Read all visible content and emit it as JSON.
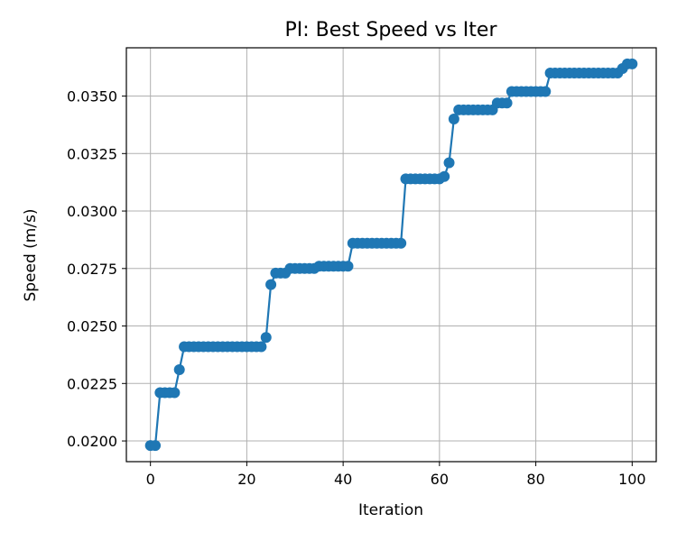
{
  "chart_data": {
    "type": "line",
    "title": "PI: Best Speed vs Iter",
    "xlabel": "Iteration",
    "ylabel": "Speed (m/s)",
    "xlim": [
      -5,
      105
    ],
    "ylim": [
      0.0191,
      0.0371
    ],
    "xticks": [
      0,
      20,
      40,
      60,
      80,
      100
    ],
    "yticks": [
      0.02,
      0.0225,
      0.025,
      0.0275,
      0.03,
      0.0325,
      0.035
    ],
    "xtick_labels": [
      "0",
      "20",
      "40",
      "60",
      "80",
      "100"
    ],
    "ytick_labels": [
      "0.0200",
      "0.0225",
      "0.0250",
      "0.0275",
      "0.0300",
      "0.0325",
      "0.0350"
    ],
    "grid": true,
    "marker": "circle",
    "line_color": "#1f77b4",
    "series": [
      {
        "x": [
          0,
          1,
          2,
          3,
          4,
          5,
          6,
          7,
          8,
          9,
          10,
          11,
          12,
          13,
          14,
          15,
          16,
          17,
          18,
          19,
          20,
          21,
          22,
          23,
          24,
          25,
          26,
          27,
          28,
          29,
          30,
          31,
          32,
          33,
          34,
          35,
          36,
          37,
          38,
          39,
          40,
          41,
          42,
          43,
          44,
          45,
          46,
          47,
          48,
          49,
          50,
          51,
          52,
          53,
          54,
          55,
          56,
          57,
          58,
          59,
          60,
          61,
          62,
          63,
          64,
          65,
          66,
          67,
          68,
          69,
          70,
          71,
          72,
          73,
          74,
          75,
          76,
          77,
          78,
          79,
          80,
          81,
          82,
          83,
          84,
          85,
          86,
          87,
          88,
          89,
          90,
          91,
          92,
          93,
          94,
          95,
          96,
          97,
          98,
          99,
          100
        ],
        "values": [
          0.0198,
          0.0198,
          0.0221,
          0.0221,
          0.0221,
          0.0221,
          0.0231,
          0.0241,
          0.0241,
          0.0241,
          0.0241,
          0.0241,
          0.0241,
          0.0241,
          0.0241,
          0.0241,
          0.0241,
          0.0241,
          0.0241,
          0.0241,
          0.0241,
          0.0241,
          0.0241,
          0.0241,
          0.0245,
          0.0268,
          0.0273,
          0.0273,
          0.0273,
          0.0275,
          0.0275,
          0.0275,
          0.0275,
          0.0275,
          0.0275,
          0.0276,
          0.0276,
          0.0276,
          0.0276,
          0.0276,
          0.0276,
          0.0276,
          0.0286,
          0.0286,
          0.0286,
          0.0286,
          0.0286,
          0.0286,
          0.0286,
          0.0286,
          0.0286,
          0.0286,
          0.0286,
          0.0314,
          0.0314,
          0.0314,
          0.0314,
          0.0314,
          0.0314,
          0.0314,
          0.0314,
          0.0315,
          0.0321,
          0.034,
          0.0344,
          0.0344,
          0.0344,
          0.0344,
          0.0344,
          0.0344,
          0.0344,
          0.0344,
          0.0347,
          0.0347,
          0.0347,
          0.0352,
          0.0352,
          0.0352,
          0.0352,
          0.0352,
          0.0352,
          0.0352,
          0.0352,
          0.036,
          0.036,
          0.036,
          0.036,
          0.036,
          0.036,
          0.036,
          0.036,
          0.036,
          0.036,
          0.036,
          0.036,
          0.036,
          0.036,
          0.036,
          0.0362,
          0.0364,
          0.0364
        ]
      }
    ]
  }
}
